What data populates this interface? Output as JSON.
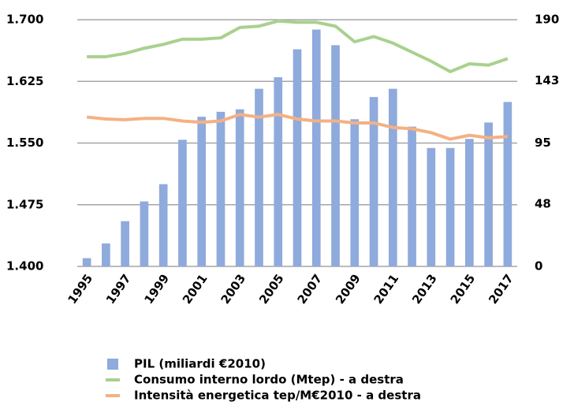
{
  "chart_data": {
    "type": "bar",
    "categories": [
      "1995",
      null,
      "1997",
      null,
      "1999",
      null,
      "2001",
      null,
      "2003",
      null,
      "2005",
      null,
      "2007",
      null,
      "2009",
      null,
      "2011",
      null,
      "2013",
      null,
      "2015",
      null,
      "2017"
    ],
    "series": [
      {
        "name": "PIL (miliardi  €2010)",
        "type": "bar",
        "color": "#8faadc",
        "values": [
          1410,
          1428,
          1455,
          1479,
          1500,
          1554,
          1582,
          1588,
          1591,
          1616,
          1630,
          1664,
          1688,
          1669,
          1579,
          1606,
          1616,
          1570,
          1544,
          1544,
          1555,
          1575,
          1600
        ]
      },
      {
        "name": "Consumo interno lordo (Mtep) - a destra",
        "type": "line",
        "axis": "y2",
        "color": "#a9d18e",
        "values": [
          161.5,
          161.5,
          164,
          168,
          171,
          175,
          175,
          176,
          184,
          185,
          189,
          188,
          188,
          185,
          173,
          177,
          172,
          165,
          158,
          150,
          156,
          155,
          160
        ]
      },
      {
        "name": "Intensità energetica tep/M€2010 - a destra",
        "type": "line",
        "axis": "y2",
        "color": "#f4b183",
        "values": [
          115,
          113.5,
          113,
          114,
          114,
          112,
          111,
          112,
          117,
          115,
          117,
          113.5,
          112,
          112,
          110.5,
          110.5,
          107,
          106,
          103,
          98,
          101,
          99,
          100
        ]
      }
    ],
    "ylim": [
      1400,
      1700
    ],
    "yticks": [
      {
        "value": 1400,
        "label": "1.400"
      },
      {
        "value": 1475,
        "label": "1.475"
      },
      {
        "value": 1550,
        "label": "1.550"
      },
      {
        "value": 1625,
        "label": "1.625"
      },
      {
        "value": 1700,
        "label": "1.700"
      }
    ],
    "y2lim": [
      0,
      190
    ],
    "y2ticks": [
      0,
      48,
      95,
      143,
      190
    ],
    "grid": true
  }
}
